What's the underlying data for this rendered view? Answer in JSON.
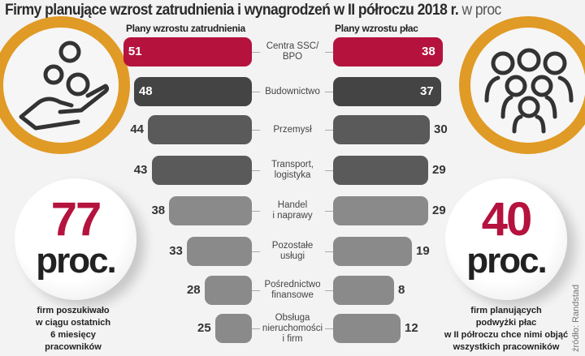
{
  "chart_data": {
    "type": "bar",
    "title": "Firmy planujące wzrost zatrudnienia i wynagrodzeń w II półroczu 2018 r.",
    "unit": "w proc",
    "categories": [
      "Centra SSC/\nBPO",
      "Budownictwo",
      "Przemysł",
      "Transport,\nlogistyka",
      "Handel\ni naprawy",
      "Pozostałe\nusługi",
      "Pośrednictwo\nfinansowe",
      "Obsługa\nnieruchomości\ni firm"
    ],
    "series": [
      {
        "name": "Plany wzrostu zatrudnienia",
        "values": [
          51,
          48,
          44,
          43,
          38,
          33,
          28,
          25
        ]
      },
      {
        "name": "Plany wzrostu płac",
        "values": [
          38,
          37,
          30,
          29,
          29,
          19,
          8,
          12
        ]
      }
    ],
    "colors": [
      "#b5123e",
      "#444444",
      "#5a5a5a",
      "#5a5a5a",
      "#8a8a8a",
      "#8a8a8a",
      "#8a8a8a",
      "#8a8a8a"
    ]
  },
  "left_stat": {
    "number": "77",
    "unit": "proc.",
    "note": "firm poszukiwało\nw ciągu ostatnich\n6 miesięcy\npracowników"
  },
  "right_stat": {
    "number": "40",
    "unit": "proc.",
    "note": "firm planujących\npodwyżki płac\nw II półroczu chce nimi objąć\nwszystkich pracowników"
  },
  "source": "źródło: Randstad",
  "icons": [
    "hand-coins-icon",
    "people-group-icon"
  ]
}
